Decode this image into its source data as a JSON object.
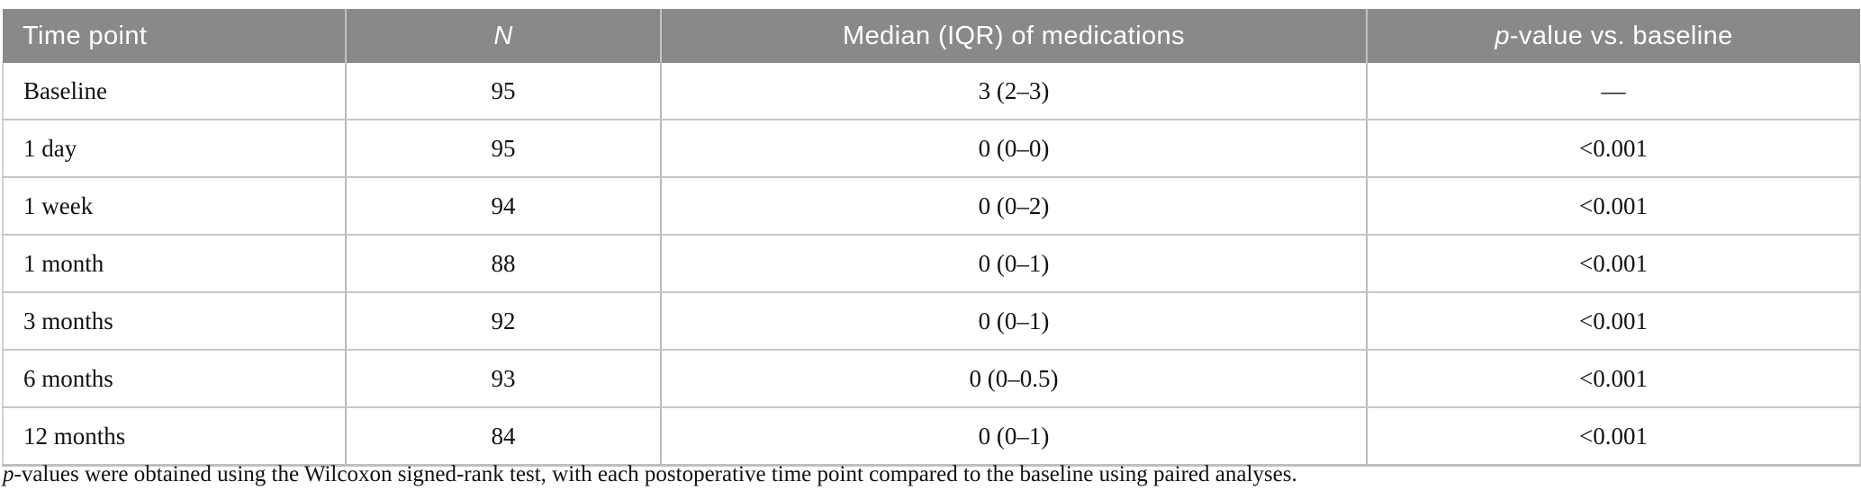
{
  "colors": {
    "header_background": "#898989",
    "header_text": "#ffffff",
    "body_text": "#111111",
    "row_border": "#c6c6c6",
    "column_border": "#b9b9b9"
  },
  "table": {
    "headers": {
      "time_point": "Time point",
      "n": "N",
      "median": "Median (IQR) of medications",
      "p_italic": "p",
      "p_rest": "-value vs. baseline"
    },
    "rows": [
      {
        "time_point": "Baseline",
        "n": "95",
        "median_iqr": "3 (2–3)",
        "p_value": "—"
      },
      {
        "time_point": "1 day",
        "n": "95",
        "median_iqr": "0 (0–0)",
        "p_value": "<0.001"
      },
      {
        "time_point": "1 week",
        "n": "94",
        "median_iqr": "0 (0–2)",
        "p_value": "<0.001"
      },
      {
        "time_point": "1 month",
        "n": "88",
        "median_iqr": "0 (0–1)",
        "p_value": "<0.001"
      },
      {
        "time_point": "3 months",
        "n": "92",
        "median_iqr": "0 (0–1)",
        "p_value": "<0.001"
      },
      {
        "time_point": "6 months",
        "n": "93",
        "median_iqr": "0 (0–0.5)",
        "p_value": "<0.001"
      },
      {
        "time_point": "12 months",
        "n": "84",
        "median_iqr": "0 (0–1)",
        "p_value": "<0.001"
      }
    ],
    "footnote": {
      "p_italic": "p",
      "rest": "-values were obtained using the Wilcoxon signed-rank test, with each postoperative time point compared to the baseline using paired analyses."
    }
  }
}
